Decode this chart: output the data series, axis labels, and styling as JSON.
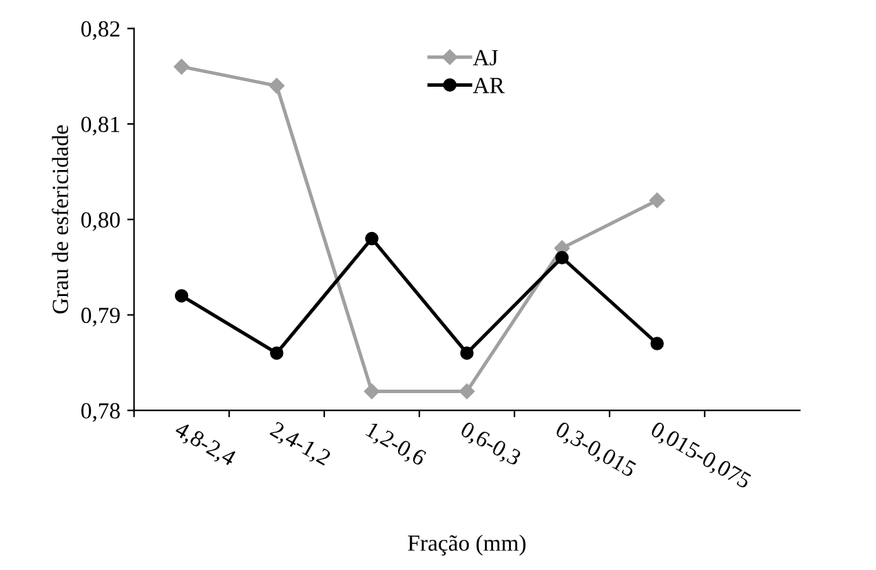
{
  "chart_data": {
    "type": "line",
    "xlabel": "Fração (mm)",
    "ylabel": "Grau de esfericidade",
    "categories": [
      "4,8-2,4",
      "2,4-1,2",
      "1,2-0,6",
      "0,6-0,3",
      "0,3-0,015",
      "0,015-0,075"
    ],
    "series": [
      {
        "name": "AJ",
        "color": "#a0a0a0",
        "marker": "diamond",
        "values": [
          0.816,
          0.814,
          0.782,
          0.782,
          0.797,
          0.802
        ]
      },
      {
        "name": "AR",
        "color": "#000000",
        "marker": "circle",
        "values": [
          0.792,
          0.786,
          0.798,
          0.786,
          0.796,
          0.787
        ]
      }
    ],
    "ylim": [
      0.78,
      0.82
    ],
    "yticks": [
      {
        "value": 0.78,
        "label": "0,78"
      },
      {
        "value": 0.79,
        "label": "0,79"
      },
      {
        "value": 0.8,
        "label": "0,80"
      },
      {
        "value": 0.81,
        "label": "0,81"
      },
      {
        "value": 0.82,
        "label": "0,82"
      }
    ],
    "grid": false,
    "legend": "top",
    "line_style": "solid"
  }
}
